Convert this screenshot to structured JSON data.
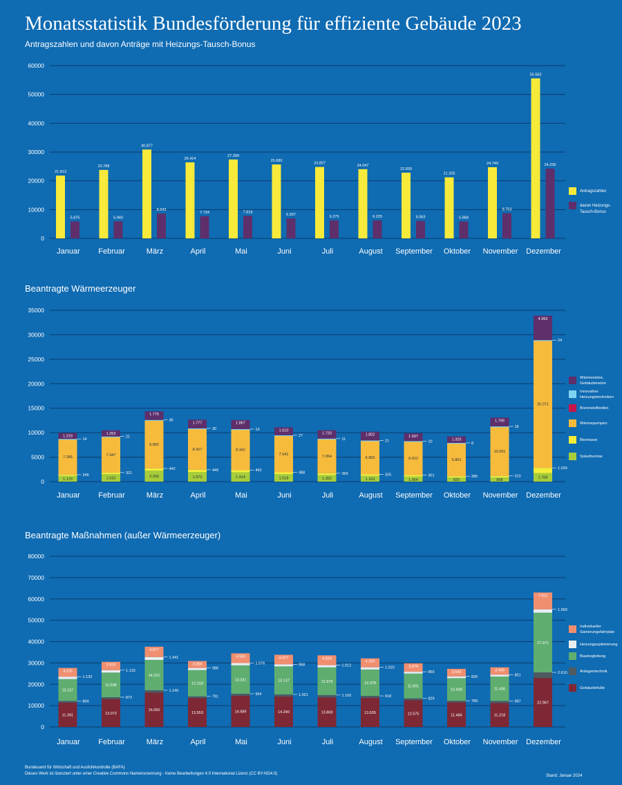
{
  "header": {
    "title": "Monatsstatistik Bundesförderung für effiziente Gebäude 2023",
    "subtitle": "Antragszahlen und davon Anträge mit Heizungs-Tausch-Bonus"
  },
  "colors": {
    "background": "#0f6bb2",
    "antragszahlen": "#f7ea3a",
    "bonus": "#5e2f6b",
    "waermenetze": "#5e2f6b",
    "innovative": "#7fd3f2",
    "brennstoffzellen": "#c3164a",
    "waermepumpen": "#f7bb3c",
    "biomasse": "#f3ee3a",
    "solarthermie": "#a7cd3a",
    "sanierungsfahrplan": "#f08f70",
    "heizungsoptimierung": "#e9eef0",
    "baubegleitung": "#5fae70",
    "anlagentechnik": "#4e5a62",
    "gebaeudehuelle": "#7e2835"
  },
  "chart_data": [
    {
      "type": "bar",
      "categories": [
        "Januar",
        "Februar",
        "März",
        "April",
        "Mai",
        "Juni",
        "Juli",
        "August",
        "September",
        "Oktober",
        "November",
        "Dezember"
      ],
      "ylim": [
        0,
        60000
      ],
      "yticks": [
        "0",
        "10000",
        "20000",
        "30000",
        "40000",
        "50000",
        "60000"
      ],
      "legend_position": "right",
      "series": [
        {
          "name": "Antragszahlen",
          "color": "#f7ea3a",
          "values": [
            21813,
            23788,
            30877,
            26414,
            27399,
            25680,
            24807,
            24047,
            22830,
            21205,
            24740,
            55583
          ],
          "labels": [
            "21.813",
            "23.788",
            "30.877",
            "26.414",
            "27.399",
            "25.680",
            "24.807",
            "24.047",
            "22.830",
            "21.205",
            "24.740",
            "55.583"
          ]
        },
        {
          "name": "davon Heizungs-Tausch-Bonus",
          "color": "#5e2f6b",
          "values": [
            5875,
            5940,
            8643,
            7734,
            7818,
            6937,
            6275,
            6225,
            6063,
            5868,
            8753,
            24236
          ],
          "labels": [
            "5.875",
            "5.940",
            "8.643",
            "7.734",
            "7.818",
            "6.937",
            "6.275",
            "6.225",
            "6.063",
            "5.868",
            "8.753",
            "24.236"
          ]
        }
      ]
    },
    {
      "type": "bar",
      "title": "Beantragte Wärmeerzeuger",
      "stacked": true,
      "categories": [
        "Januar",
        "Februar",
        "März",
        "April",
        "Mai",
        "Juni",
        "Juli",
        "August",
        "September",
        "Oktober",
        "November",
        "Dezember"
      ],
      "ylim": [
        0,
        35000
      ],
      "yticks": [
        "0",
        "5000",
        "10000",
        "15000",
        "20000",
        "25000",
        "30000",
        "35000"
      ],
      "legend_position": "right",
      "series": [
        {
          "name": "Solarthermie",
          "color": "#a7cd3a",
          "values": [
            1179,
            1532,
            2256,
            1972,
            1914,
            1518,
            1352,
            1162,
            1054,
            820,
            858,
            1768
          ],
          "labels": [
            "1.179",
            "1.532",
            "2.256",
            "1.972",
            "1.914",
            "1.518",
            "1.352",
            "1.162",
            "1.054",
            "820",
            "858",
            "1.768"
          ]
        },
        {
          "name": "Biomasse",
          "color": "#f3ee3a",
          "values": [
            246,
            321,
            442,
            449,
            462,
            388,
            365,
            325,
            301,
            285,
            310,
            1039
          ],
          "labels": [
            "246",
            "321",
            "442",
            "449",
            "462",
            "388",
            "365",
            "325",
            "301",
            "285",
            "310",
            "1.039"
          ]
        },
        {
          "name": "Wärmepumpen",
          "color": "#f7bb3c",
          "values": [
            7285,
            7347,
            9862,
            8427,
            8342,
            7541,
            7054,
            6900,
            6912,
            6801,
            10091,
            26071
          ],
          "labels": [
            "7.285",
            "7.347",
            "9.862",
            "8.427",
            "8.342",
            "7.541",
            "7.054",
            "6.900",
            "6.912",
            "6.801",
            "10.091",
            "26.071"
          ]
        },
        {
          "name": "Brennstoffzellen",
          "color": "#c3164a",
          "values": [
            0,
            0,
            0,
            0,
            0,
            0,
            0,
            0,
            0,
            0,
            0,
            0
          ]
        },
        {
          "name": "Innovative Heizungstechniken",
          "color": "#7fd3f2",
          "values": [
            14,
            21,
            36,
            30,
            13,
            27,
            11,
            21,
            10,
            8,
            18,
            24
          ],
          "labels": [
            "14",
            "21",
            "36",
            "30",
            "13",
            "27",
            "11",
            "21",
            "10",
            "8",
            "18",
            "24"
          ]
        },
        {
          "name": "Wärmenetze, Gebäudenetze",
          "color": "#5e2f6b",
          "values": [
            1219,
            1253,
            1775,
            1777,
            1867,
            1610,
            1720,
            1802,
            1597,
            1320,
            1799,
            4993
          ],
          "labels": [
            "1.219",
            "1.253",
            "1.775",
            "1.777",
            "1.867",
            "1.610",
            "1.720",
            "1.802",
            "1.597",
            "1.320",
            "1.799",
            "4.993"
          ]
        }
      ]
    },
    {
      "type": "bar",
      "title": "Beantragte Maßnahmen (außer Wärmeerzeuger)",
      "stacked": true,
      "categories": [
        "Januar",
        "Februar",
        "März",
        "April",
        "Mai",
        "Juni",
        "Juli",
        "August",
        "September",
        "Oktober",
        "November",
        "Dezember"
      ],
      "ylim": [
        0,
        80000
      ],
      "yticks": [
        "0",
        "10000",
        "20000",
        "30000",
        "40000",
        "50000",
        "60000",
        "70000",
        "80000"
      ],
      "legend_position": "right",
      "series": [
        {
          "name": "Gebäudehülle",
          "color": "#7e2835",
          "values": [
            11391,
            13072,
            16050,
            13553,
            14589,
            14240,
            13869,
            13635,
            12575,
            11484,
            11218,
            22967
          ],
          "labels": [
            "11.391",
            "13.072",
            "16.050",
            "13.553",
            "14.589",
            "14.240",
            "13.869",
            "13.635",
            "12.575",
            "11.484",
            "11.218",
            "22.967"
          ]
        },
        {
          "name": "Anlagentechnik",
          "color": "#4e5a62",
          "values": [
            804,
            872,
            1140,
            791,
            954,
            1021,
            1100,
            918,
            829,
            789,
            997,
            2610
          ],
          "labels": [
            "804",
            "872",
            "1.140",
            "791",
            "954",
            "1.021",
            "1.100",
            "918",
            "829",
            "789",
            "997",
            "2.610"
          ]
        },
        {
          "name": "Baubegleitung",
          "color": "#5fae70",
          "values": [
            10237,
            11538,
            14231,
            12318,
            13331,
            13137,
            12976,
            12378,
            11601,
            10608,
            11436,
            27971
          ],
          "labels": [
            "10.237",
            "11.538",
            "14.231",
            "12.318",
            "13.331",
            "13.137",
            "12.976",
            "12.378",
            "11.601",
            "10.608",
            "11.436",
            "27.971"
          ]
        },
        {
          "name": "Heizungsoptimierung",
          "color": "#e9eef0",
          "values": [
            1133,
            1133,
            1341,
            986,
            1076,
            958,
            1012,
            1020,
            865,
            826,
            851,
            1569
          ],
          "labels": [
            "1.133",
            "1.133",
            "1.341",
            "986",
            "1.076",
            "958",
            "1.012",
            "1.020",
            "865",
            "826",
            "851",
            "1.569"
          ]
        },
        {
          "name": "Individueller Sanierungsfahrplan",
          "color": "#f08f70",
          "values": [
            4115,
            3913,
            4877,
            3266,
            4583,
            4477,
            4624,
            4200,
            3974,
            3543,
            3449,
            7912
          ],
          "labels": [
            "4.115",
            "3.913",
            "4.877",
            "3.266",
            "4.583",
            "4.477",
            "4.624",
            "4.200",
            "3.974",
            "3.543",
            "3.449",
            "7.912"
          ]
        }
      ]
    }
  ],
  "footer": {
    "source_line1": "Bundesamt für Wirtschaft und Ausfuhrkontrolle (BAFA)",
    "source_line2": "Dieses Werk ist lizenziert unter einer Creative Commons Namensnennung - Keine Bearbeitungen 4.0 International Lizenz (CC BY-ND4.0)",
    "stand": "Stand: Januar 2024"
  }
}
